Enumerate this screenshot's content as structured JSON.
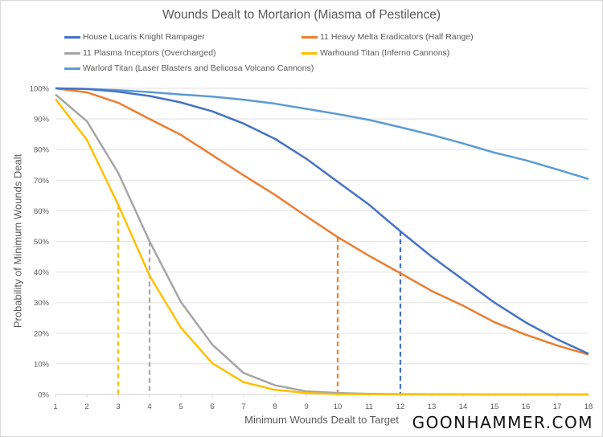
{
  "chart_data": {
    "type": "line",
    "title": "Wounds Dealt to Mortarion (Miasma of Pestilence)",
    "xlabel": "Minimum Wounds Dealt to Target",
    "ylabel": "Probability of Minimum Wounds Dealt",
    "x": [
      1,
      2,
      3,
      4,
      5,
      6,
      7,
      8,
      9,
      10,
      11,
      12,
      13,
      14,
      15,
      16,
      17,
      18
    ],
    "xlim": [
      1,
      18
    ],
    "ylim": [
      0,
      100
    ],
    "y_ticks": [
      "0%",
      "10%",
      "20%",
      "30%",
      "40%",
      "50%",
      "60%",
      "70%",
      "80%",
      "90%",
      "100%"
    ],
    "x_ticks": [
      "1",
      "2",
      "3",
      "4",
      "5",
      "6",
      "7",
      "8",
      "9",
      "10",
      "11",
      "12",
      "13",
      "14",
      "15",
      "16",
      "17",
      "18"
    ],
    "grid": true,
    "legend_position": "top",
    "series": [
      {
        "name": "House Lucaris Knight Rampager",
        "color": "#4472c4",
        "values": [
          100,
          99.8,
          98.9,
          97.5,
          95.4,
          92.5,
          88.5,
          83.5,
          77.0,
          69.5,
          62.0,
          53.3,
          45.0,
          37.5,
          30.0,
          23.5,
          18.0,
          13.3
        ]
      },
      {
        "name": "11 Heavy Melta Eradicators (Half Range)",
        "color": "#ed7d31",
        "values": [
          100,
          98.7,
          95.3,
          90.0,
          84.8,
          78.2,
          71.6,
          65.2,
          58.2,
          51.4,
          45.3,
          39.6,
          33.8,
          29.0,
          23.6,
          19.5,
          16.0,
          13.0
        ]
      },
      {
        "name": "11 Plasma Inceptors (Overcharged)",
        "color": "#a5a5a5",
        "values": [
          98.0,
          89.3,
          72.4,
          50.0,
          30.2,
          16.3,
          7.0,
          3.0,
          1.0,
          0.5,
          0.2,
          0.1,
          0.05,
          0.02,
          0.01,
          0,
          0,
          0
        ]
      },
      {
        "name": "Warhound Titan (Inferno Cannons)",
        "color": "#ffc000",
        "values": [
          96.5,
          83.2,
          62.0,
          38.8,
          21.8,
          10.2,
          4.0,
          1.5,
          0.5,
          0.1,
          0.05,
          0,
          0,
          0,
          0,
          0,
          0,
          0
        ]
      },
      {
        "name": "Warlord Titan (Laser Blasters and Belicosa Volcano Cannons)",
        "color": "#5b9bd5",
        "values": [
          100,
          99.8,
          99.4,
          98.8,
          98.0,
          97.3,
          96.3,
          95.0,
          93.3,
          91.6,
          89.7,
          87.3,
          84.8,
          82.0,
          79.0,
          76.5,
          73.5,
          70.4
        ]
      }
    ],
    "markers": [
      {
        "series": "Warhound Titan (Inferno Cannons)",
        "x": 3,
        "y": 62.0,
        "color": "#ffc000"
      },
      {
        "series": "11 Plasma Inceptors (Overcharged)",
        "x": 4,
        "y": 50.0,
        "color": "#a5a5a5"
      },
      {
        "series": "11 Heavy Melta Eradicators (Half Range)",
        "x": 10,
        "y": 51.4,
        "color": "#ed7d31"
      },
      {
        "series": "House Lucaris Knight Rampager",
        "x": 12,
        "y": 53.3,
        "color": "#4472c4"
      }
    ]
  },
  "branding": {
    "text": "GOONHAMMER.COM"
  }
}
